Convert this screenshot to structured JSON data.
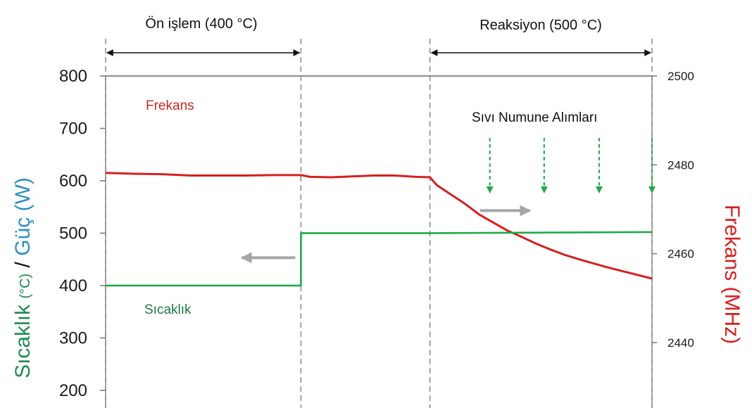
{
  "chart_data": {
    "type": "line",
    "phases": [
      {
        "label": "Ön işlem (400 °C)",
        "x_start": 0,
        "x_end": 277
      },
      {
        "label": "Reaksiyon (500 °C)",
        "x_start": 460,
        "x_end": 775
      }
    ],
    "y_left": {
      "label_parts": [
        "Sıcaklık",
        "(°C)",
        "/",
        "Güç",
        "(W)"
      ],
      "ticks": [
        200,
        300,
        400,
        500,
        600,
        700,
        800
      ],
      "range": [
        130,
        800
      ]
    },
    "y_right": {
      "label": "Frekans (MHz)",
      "ticks": [
        2440,
        2460,
        2480,
        2500
      ],
      "range": [
        2421,
        2500
      ]
    },
    "x_range": [
      0,
      775
    ],
    "series": [
      {
        "name": "Frekans",
        "axis": "right",
        "color": "#d42020",
        "points": [
          [
            0,
            2478.2
          ],
          [
            40,
            2478.0
          ],
          [
            80,
            2477.9
          ],
          [
            120,
            2477.6
          ],
          [
            160,
            2477.6
          ],
          [
            200,
            2477.6
          ],
          [
            240,
            2477.7
          ],
          [
            277,
            2477.7
          ],
          [
            290,
            2477.3
          ],
          [
            320,
            2477.2
          ],
          [
            350,
            2477.4
          ],
          [
            380,
            2477.6
          ],
          [
            410,
            2477.6
          ],
          [
            440,
            2477.3
          ],
          [
            460,
            2477.2
          ],
          [
            470,
            2475.4
          ],
          [
            490,
            2473.3
          ],
          [
            510,
            2471.2
          ],
          [
            530,
            2468.8
          ],
          [
            550,
            2467.0
          ],
          [
            570,
            2465.2
          ],
          [
            590,
            2463.8
          ],
          [
            610,
            2462.3
          ],
          [
            630,
            2461.0
          ],
          [
            650,
            2459.8
          ],
          [
            670,
            2458.8
          ],
          [
            690,
            2457.9
          ],
          [
            710,
            2457.0
          ],
          [
            730,
            2456.2
          ],
          [
            750,
            2455.4
          ],
          [
            775,
            2454.4
          ]
        ]
      },
      {
        "name": "Sıcaklık",
        "axis": "left",
        "color": "#1faa4a",
        "points": [
          [
            0,
            400
          ],
          [
            277,
            400
          ],
          [
            277,
            500
          ],
          [
            460,
            500
          ],
          [
            775,
            502
          ]
        ]
      }
    ],
    "annotations": {
      "frekans_label": "Frekans",
      "sicaklik_label": "Sıcaklık",
      "sampling_label": "Sıvı Numune Alımları",
      "sampling_x": [
        545,
        622,
        700,
        775
      ]
    },
    "colors": {
      "frequency": "#d42020",
      "temperature": "#1faa4a",
      "temperature_text": "#1e7a45",
      "power_text": "#2f8fc0",
      "sampling_arrow": "#1faa4a",
      "gray_arrow": "#a6a6a6"
    }
  }
}
